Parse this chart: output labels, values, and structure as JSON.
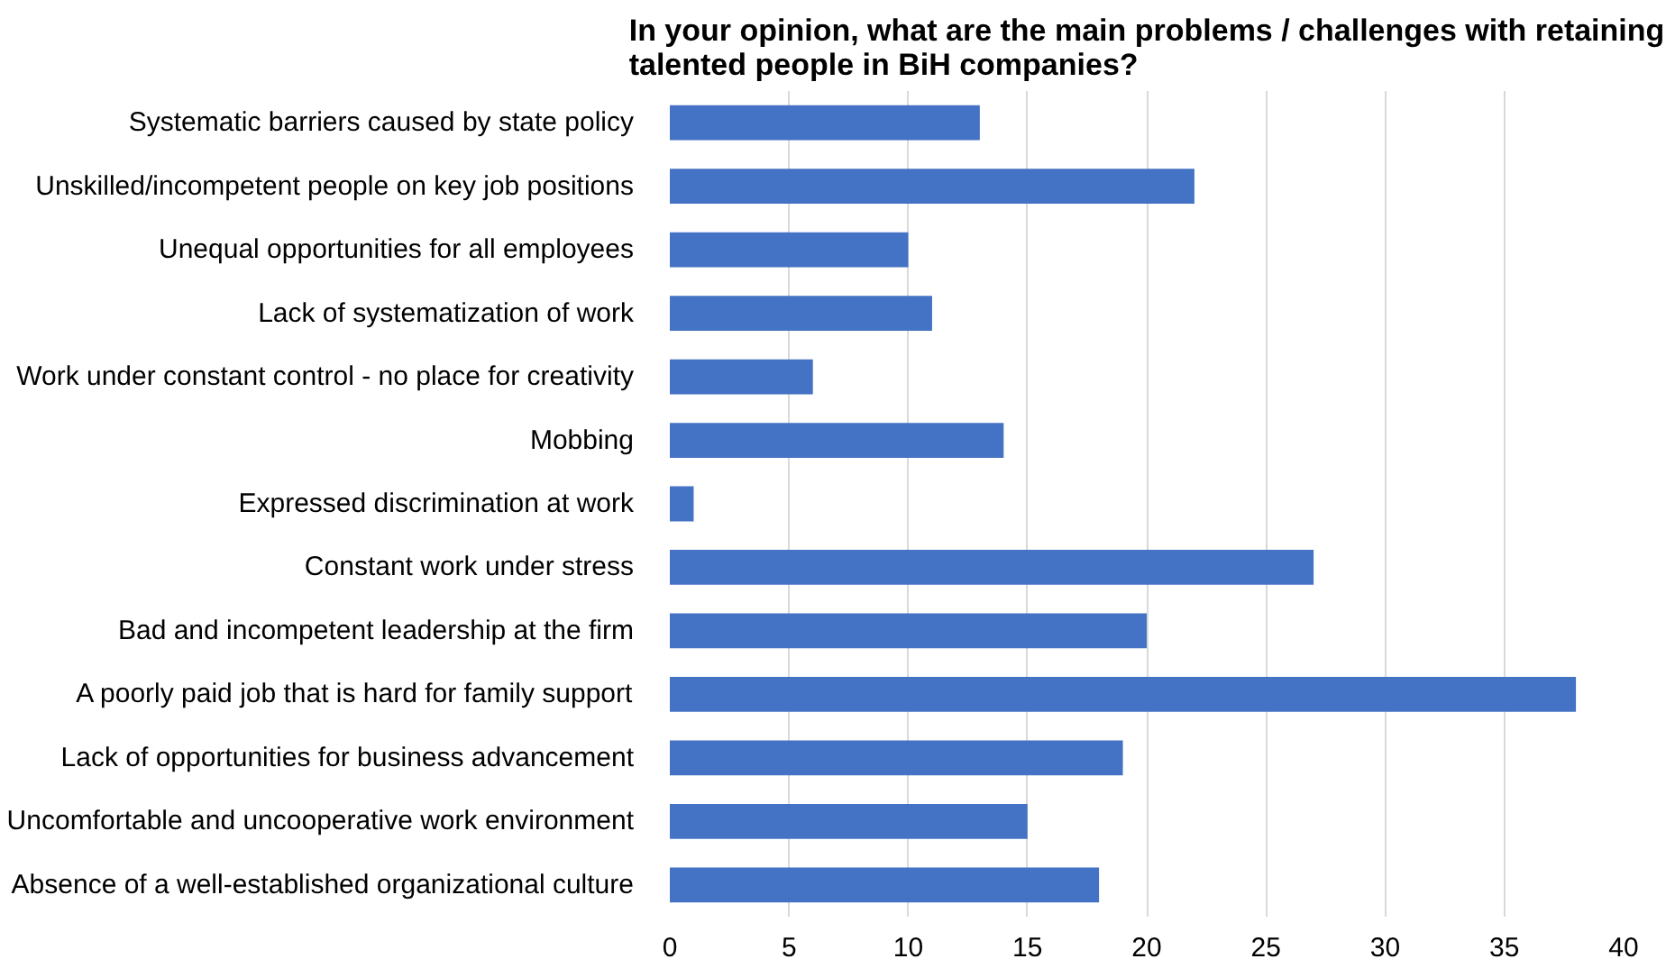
{
  "chart_data": {
    "type": "bar",
    "orientation": "horizontal",
    "title": "In your opinion, what are the main problems / challenges with retaining talented people in BiH companies?",
    "categories": [
      "Systematic barriers caused by state policy",
      "Unskilled/incompetent people on key job positions",
      "Unequal opportunities for all employees",
      "Lack of systematization of work",
      "Work under constant control - no place for creativity",
      "Mobbing",
      "Expressed discrimination at work",
      "Constant work under stress",
      "Bad and incompetent leadership at the firm",
      "A poorly paid job that is hard for family support",
      "Lack of opportunities for business advancement",
      "Uncomfortable and uncooperative work environment",
      "Absence of a well-established organizational culture"
    ],
    "values": [
      13,
      22,
      10,
      11,
      6,
      14,
      1,
      27,
      20,
      38,
      19,
      15,
      18
    ],
    "color": "#4472c4",
    "xlim": [
      0,
      40
    ],
    "xticks": [
      0,
      5,
      10,
      15,
      20,
      25,
      30,
      35,
      40
    ],
    "grid": "x"
  }
}
